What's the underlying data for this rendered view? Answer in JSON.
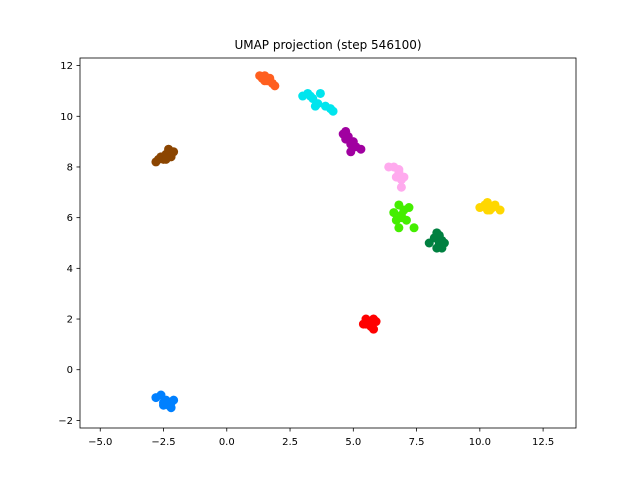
{
  "chart_data": {
    "type": "scatter",
    "title": "UMAP projection (step 546100)",
    "xlabel": "",
    "ylabel": "",
    "xlim": [
      -5.8,
      13.8
    ],
    "ylim": [
      -2.3,
      12.3
    ],
    "xticks": [
      -5.0,
      -2.5,
      0.0,
      2.5,
      5.0,
      7.5,
      10.0,
      12.5
    ],
    "xtick_labels": [
      "−5.0",
      "−2.5",
      "0.0",
      "2.5",
      "5.0",
      "7.5",
      "10.0",
      "12.5"
    ],
    "yticks": [
      -2,
      0,
      2,
      4,
      6,
      8,
      10,
      12
    ],
    "ytick_labels": [
      "−2",
      "0",
      "2",
      "4",
      "6",
      "8",
      "10",
      "12"
    ],
    "grid": false,
    "legend": "none",
    "series": [
      {
        "color": "#ff5f1f",
        "points": [
          [
            1.3,
            11.6
          ],
          [
            1.4,
            11.5
          ],
          [
            1.5,
            11.6
          ],
          [
            1.6,
            11.4
          ],
          [
            1.7,
            11.5
          ],
          [
            1.8,
            11.3
          ],
          [
            1.9,
            11.2
          ],
          [
            1.5,
            11.4
          ]
        ]
      },
      {
        "color": "#00e5ee",
        "points": [
          [
            3.0,
            10.8
          ],
          [
            3.2,
            10.9
          ],
          [
            3.4,
            10.7
          ],
          [
            3.6,
            10.5
          ],
          [
            3.5,
            10.4
          ],
          [
            3.7,
            10.9
          ],
          [
            3.9,
            10.4
          ],
          [
            4.1,
            10.3
          ],
          [
            4.2,
            10.2
          ],
          [
            3.3,
            10.8
          ]
        ]
      },
      {
        "color": "#a000a0",
        "points": [
          [
            4.6,
            9.3
          ],
          [
            4.7,
            9.1
          ],
          [
            4.8,
            9.2
          ],
          [
            4.9,
            8.9
          ],
          [
            5.0,
            9.0
          ],
          [
            5.1,
            8.8
          ],
          [
            5.3,
            8.7
          ],
          [
            4.9,
            8.6
          ],
          [
            4.7,
            9.4
          ]
        ]
      },
      {
        "color": "#8b4500",
        "points": [
          [
            -2.8,
            8.2
          ],
          [
            -2.6,
            8.4
          ],
          [
            -2.5,
            8.3
          ],
          [
            -2.4,
            8.5
          ],
          [
            -2.3,
            8.7
          ],
          [
            -2.2,
            8.4
          ],
          [
            -2.1,
            8.6
          ],
          [
            -2.4,
            8.3
          ],
          [
            -2.7,
            8.3
          ]
        ]
      },
      {
        "color": "#ffaaee",
        "points": [
          [
            6.4,
            8.0
          ],
          [
            6.6,
            8.0
          ],
          [
            6.8,
            7.9
          ],
          [
            6.7,
            7.6
          ],
          [
            6.9,
            7.5
          ],
          [
            7.0,
            7.6
          ],
          [
            6.9,
            7.2
          ],
          [
            6.8,
            7.8
          ]
        ]
      },
      {
        "color": "#44ee00",
        "points": [
          [
            6.6,
            6.2
          ],
          [
            6.8,
            6.5
          ],
          [
            6.9,
            6.1
          ],
          [
            7.0,
            6.3
          ],
          [
            6.7,
            5.9
          ],
          [
            7.2,
            6.4
          ],
          [
            7.1,
            5.9
          ],
          [
            6.8,
            5.6
          ],
          [
            7.4,
            5.6
          ],
          [
            6.9,
            6.0
          ]
        ]
      },
      {
        "color": "#ffd700",
        "points": [
          [
            10.0,
            6.4
          ],
          [
            10.2,
            6.5
          ],
          [
            10.3,
            6.6
          ],
          [
            10.4,
            6.3
          ],
          [
            10.5,
            6.4
          ],
          [
            10.6,
            6.5
          ],
          [
            10.8,
            6.3
          ],
          [
            10.3,
            6.3
          ]
        ]
      },
      {
        "color": "#008040",
        "points": [
          [
            8.0,
            5.0
          ],
          [
            8.2,
            5.2
          ],
          [
            8.3,
            5.4
          ],
          [
            8.4,
            5.0
          ],
          [
            8.5,
            4.8
          ],
          [
            8.6,
            5.0
          ],
          [
            8.3,
            4.8
          ],
          [
            8.4,
            5.3
          ],
          [
            8.5,
            5.1
          ]
        ]
      },
      {
        "color": "#ff0000",
        "points": [
          [
            5.4,
            1.8
          ],
          [
            5.5,
            2.0
          ],
          [
            5.6,
            1.9
          ],
          [
            5.7,
            1.7
          ],
          [
            5.8,
            2.0
          ],
          [
            5.9,
            1.9
          ],
          [
            5.6,
            1.8
          ],
          [
            5.8,
            1.6
          ],
          [
            5.5,
            1.8
          ]
        ]
      },
      {
        "color": "#0080ff",
        "points": [
          [
            -2.8,
            -1.1
          ],
          [
            -2.6,
            -1.0
          ],
          [
            -2.5,
            -1.3
          ],
          [
            -2.4,
            -1.2
          ],
          [
            -2.3,
            -1.4
          ],
          [
            -2.2,
            -1.3
          ],
          [
            -2.1,
            -1.2
          ],
          [
            -2.2,
            -1.5
          ],
          [
            -2.5,
            -1.4
          ]
        ]
      }
    ]
  }
}
